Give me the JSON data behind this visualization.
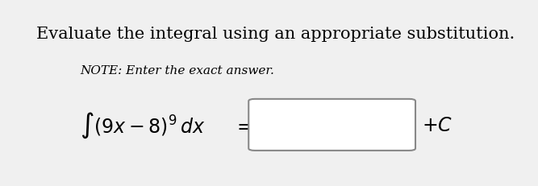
{
  "title": "Evaluate the integral using an appropriate substitution.",
  "note": "NOTE: Enter the exact answer.",
  "integral_expr": "$\\int (9x-8)^9\\, dx$",
  "equals": "$=$",
  "plus_c": "$+C$",
  "bg_color": "#f0f0f0",
  "text_color": "#000000",
  "box_edge_color": "#888888",
  "title_fontsize": 15,
  "note_fontsize": 11,
  "math_fontsize": 17
}
